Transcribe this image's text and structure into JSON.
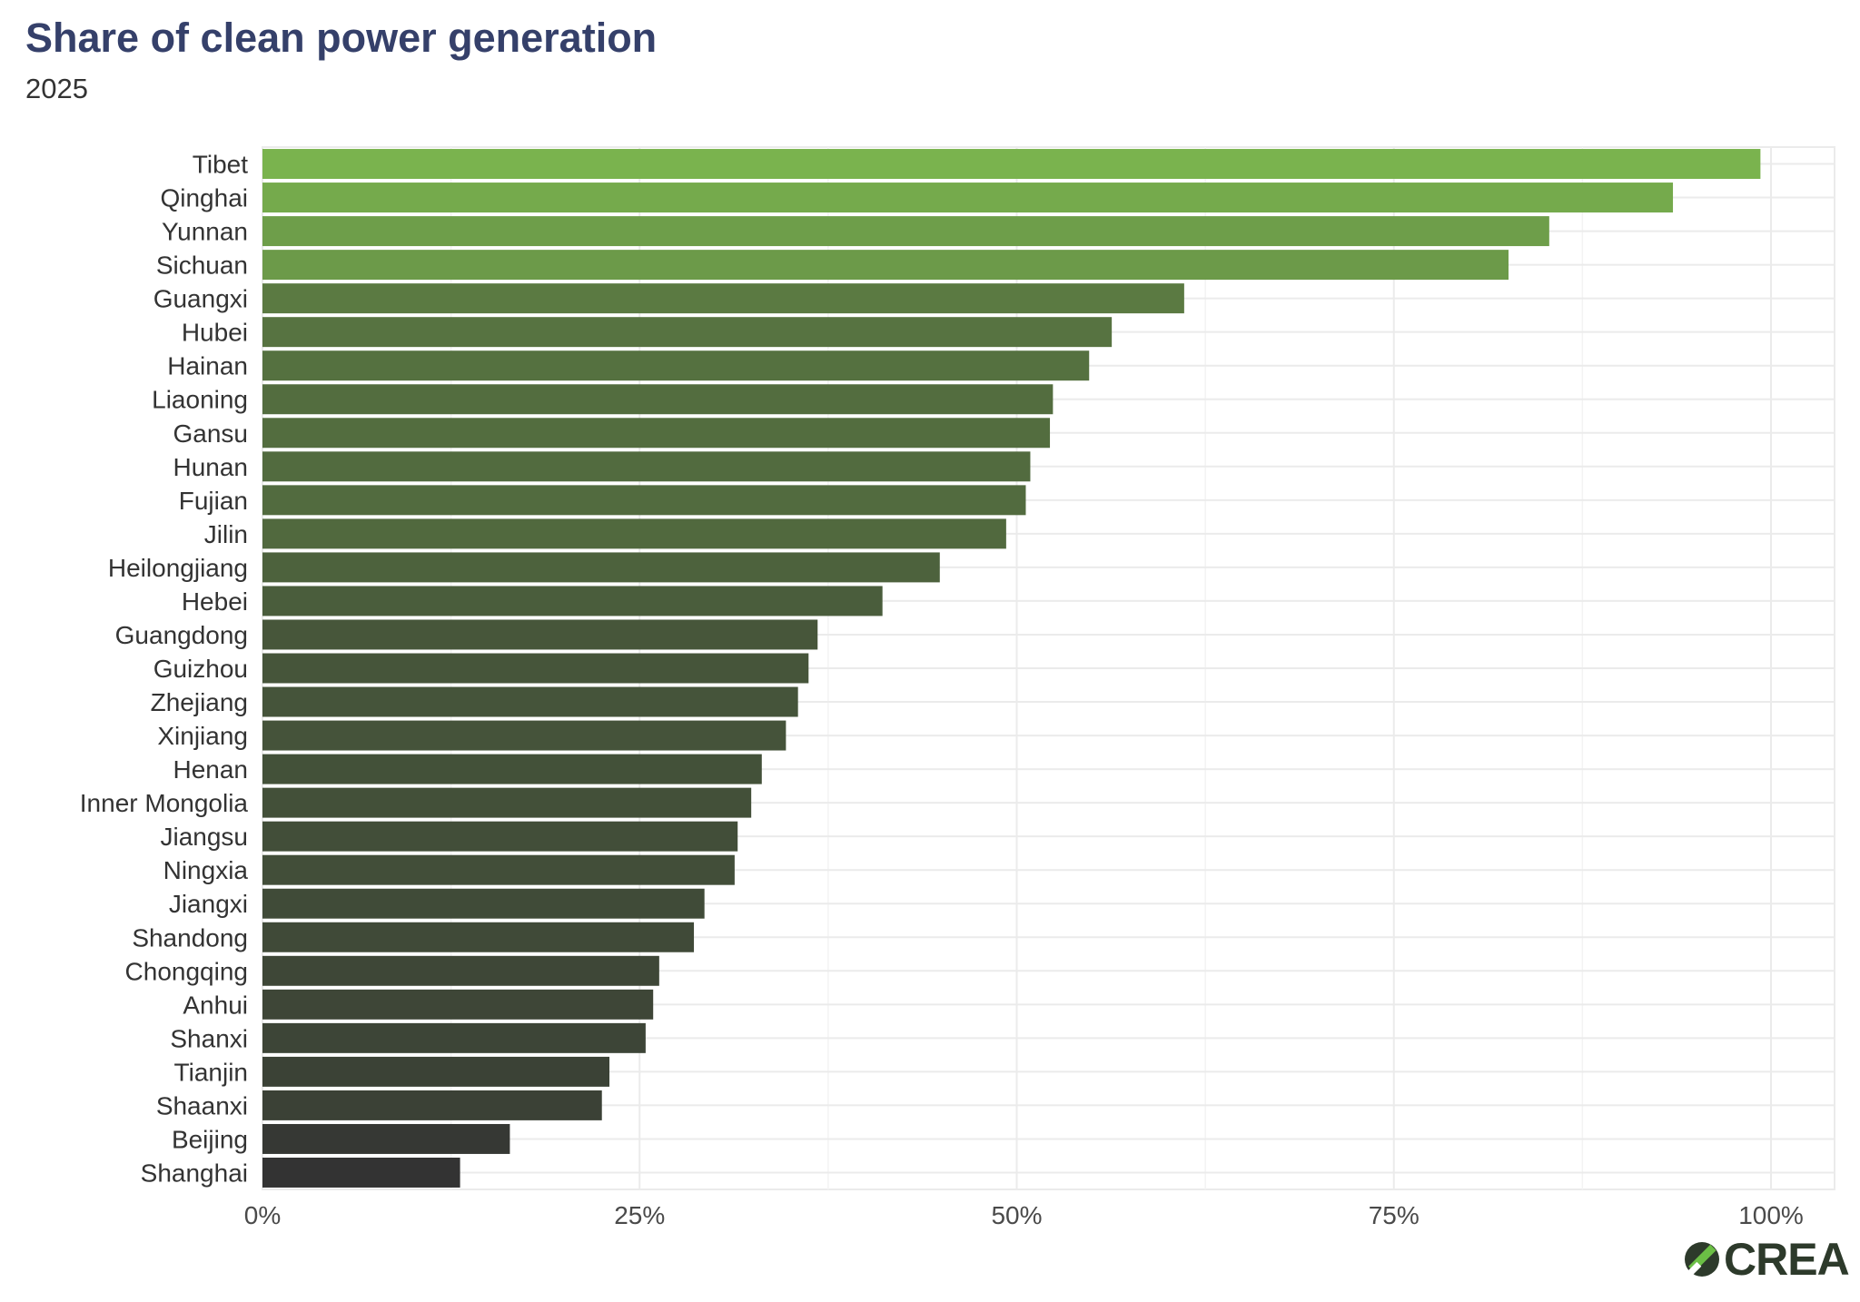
{
  "chart_data": {
    "type": "bar",
    "orientation": "horizontal",
    "title": "Share of clean power generation",
    "subtitle": "2025",
    "xlim": [
      0,
      1.0
    ],
    "x_ticks": [
      "0%",
      "25%",
      "50%",
      "75%",
      "100%"
    ],
    "grid": true,
    "categories": [
      "Tibet",
      "Qinghai",
      "Yunnan",
      "Sichuan",
      "Guangxi",
      "Hubei",
      "Hainan",
      "Liaoning",
      "Gansu",
      "Hunan",
      "Fujian",
      "Jilin",
      "Heilongjiang",
      "Hebei",
      "Guangdong",
      "Guizhou",
      "Zhejiang",
      "Xinjiang",
      "Henan",
      "Inner Mongolia",
      "Jiangsu",
      "Ningxia",
      "Jiangxi",
      "Shandong",
      "Chongqing",
      "Anhui",
      "Shanxi",
      "Tianjin",
      "Shaanxi",
      "Beijing",
      "Shanghai"
    ],
    "values": [
      0.993,
      0.935,
      0.853,
      0.826,
      0.611,
      0.563,
      0.548,
      0.524,
      0.522,
      0.509,
      0.506,
      0.493,
      0.449,
      0.411,
      0.368,
      0.362,
      0.355,
      0.347,
      0.331,
      0.324,
      0.315,
      0.313,
      0.293,
      0.286,
      0.263,
      0.259,
      0.254,
      0.23,
      0.225,
      0.164,
      0.131
    ],
    "color_low": "#333333",
    "color_high": "#7ab34e"
  },
  "brand": {
    "logo_text": "CREA"
  }
}
